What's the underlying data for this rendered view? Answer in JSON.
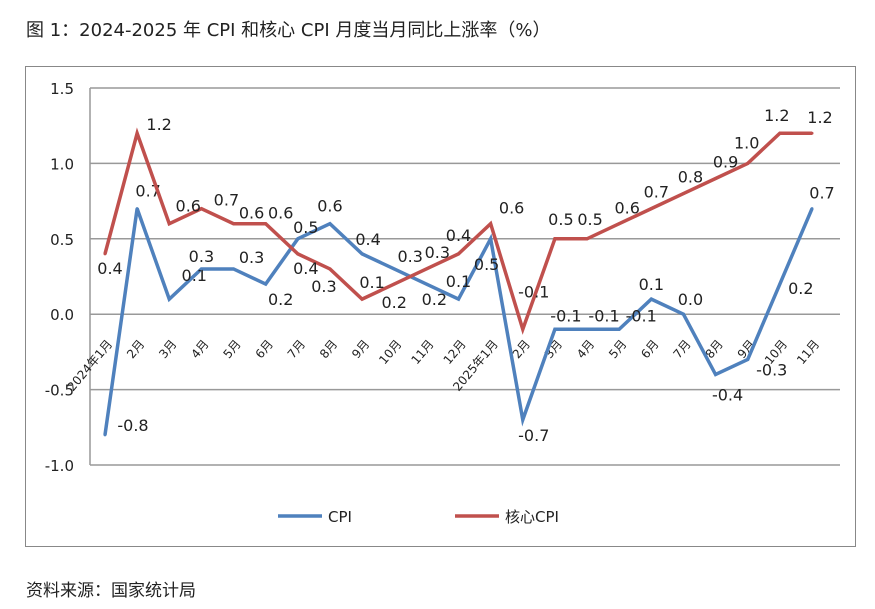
{
  "title": "图 1：2024-2025 年 CPI 和核心 CPI 月度当月同比上涨率（%）",
  "source": "资料来源：国家统计局",
  "chart_data": {
    "type": "line",
    "title": "图 1：2024-2025 年 CPI 和核心 CPI 月度当月同比上涨率（%）",
    "categories": [
      "2024年1月",
      "2月",
      "3月",
      "4月",
      "5月",
      "6月",
      "7月",
      "8月",
      "9月",
      "10月",
      "11月",
      "12月",
      "2025年1月",
      "2月",
      "3月",
      "4月",
      "5月",
      "6月",
      "7月",
      "8月",
      "9月",
      "10月",
      "11月"
    ],
    "ylim": [
      -1.0,
      1.5
    ],
    "yticks": [
      "1.5",
      "1.0",
      "0.5",
      "0.0",
      "-0.5",
      "-1.0"
    ],
    "grid": true,
    "legend": "bottom",
    "series": [
      {
        "name": "CPI",
        "color": "#4F81BD",
        "values": [
          -0.8,
          0.7,
          0.1,
          0.3,
          0.3,
          0.2,
          0.5,
          0.6,
          0.4,
          0.3,
          0.2,
          0.1,
          0.5,
          -0.7,
          -0.1,
          -0.1,
          -0.1,
          0.1,
          0.0,
          -0.4,
          -0.3,
          0.2,
          0.7
        ]
      },
      {
        "name": "核心CPI",
        "color": "#C0504D",
        "values": [
          0.4,
          1.2,
          0.6,
          0.7,
          0.6,
          0.6,
          0.4,
          0.3,
          0.1,
          0.2,
          0.3,
          0.4,
          0.6,
          -0.1,
          0.5,
          0.5,
          0.6,
          0.7,
          0.8,
          0.9,
          1.0,
          1.2,
          1.2
        ]
      }
    ]
  }
}
